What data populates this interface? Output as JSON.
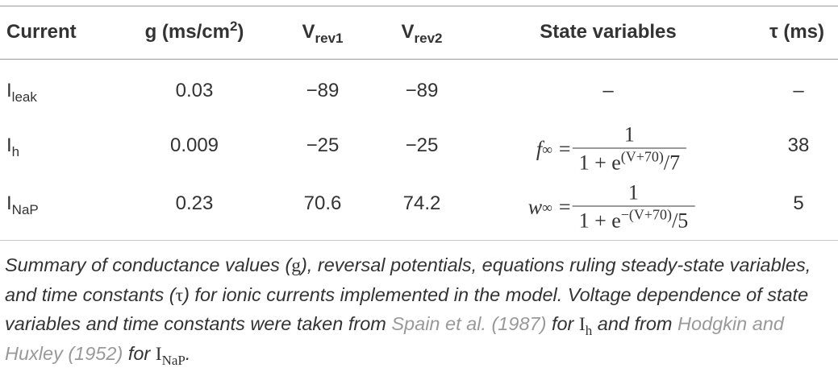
{
  "table": {
    "header": {
      "current": "Current",
      "g": {
        "text": "g (ms/cm",
        "sup": "2",
        "after": ")"
      },
      "vrev1": {
        "text": "V",
        "sub": "rev1"
      },
      "vrev2": {
        "text": "V",
        "sub": "rev2"
      },
      "state": "State variables",
      "tau": "τ (ms)"
    },
    "rows": [
      {
        "current": {
          "text": "I",
          "sub": "leak"
        },
        "g": "0.03",
        "vrev1": "−89",
        "vrev2": "−89",
        "state": "–",
        "tau": "–"
      },
      {
        "current": {
          "text": "I",
          "sub": "h"
        },
        "g": "0.009",
        "vrev1": "−25",
        "vrev2": "−25",
        "state": {
          "lhs": "f",
          "lhs_sub": "∞",
          "eq": "=",
          "numerator": "1",
          "denominator": "1 + e",
          "exponent": "(V+70)",
          "tail": "/7"
        },
        "tau": "38"
      },
      {
        "current": {
          "text": "I",
          "sub": "NaP"
        },
        "g": "0.23",
        "vrev1": "70.6",
        "vrev2": "74.2",
        "state": {
          "lhs": "w",
          "lhs_sub": "∞",
          "eq": "=",
          "numerator": "1",
          "denominator": "1 + e",
          "exponent": "−(V+70)",
          "tail": "/5"
        },
        "tau": "5"
      }
    ]
  },
  "caption": [
    "Summary of conductance values (",
    "g",
    "), reversal potentials, equations ruling steady-state variables, and time constants (",
    "τ",
    ") for ionic currents implemented in the model. Voltage dependence of state variables and time constants were taken from ",
    "Spain et al. (1987)",
    " for ",
    "I",
    "h",
    " and from ",
    "Hodgkin and Huxley (1952)",
    " for ",
    "I",
    "NaP",
    "."
  ]
}
